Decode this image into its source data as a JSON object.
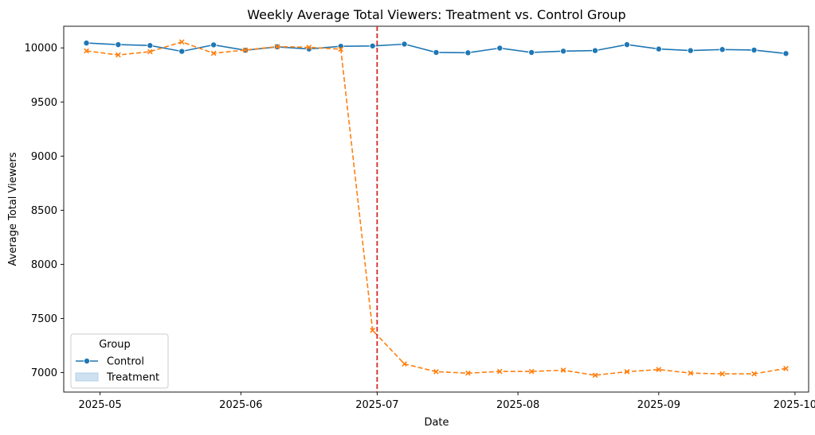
{
  "chart_data": {
    "type": "line",
    "title": "Weekly Average Total Viewers: Treatment vs. Control Group",
    "xlabel": "Date",
    "ylabel": "Average Total Viewers",
    "x": [
      "2025-04-28",
      "2025-05-05",
      "2025-05-12",
      "2025-05-19",
      "2025-05-26",
      "2025-06-02",
      "2025-06-09",
      "2025-06-16",
      "2025-06-23",
      "2025-06-30",
      "2025-07-07",
      "2025-07-14",
      "2025-07-21",
      "2025-07-28",
      "2025-08-04",
      "2025-08-11",
      "2025-08-18",
      "2025-08-25",
      "2025-09-01",
      "2025-09-08",
      "2025-09-15",
      "2025-09-22",
      "2025-09-29"
    ],
    "series": [
      {
        "name": "Control",
        "color": "#1f77b4",
        "marker": "circle",
        "style": "solid",
        "values": [
          10045,
          10030,
          10022,
          9968,
          10028,
          9978,
          10010,
          9990,
          10015,
          10018,
          10035,
          9958,
          9955,
          9998,
          9958,
          9970,
          9975,
          10030,
          9990,
          9975,
          9985,
          9980,
          9948
        ]
      },
      {
        "name": "Treatment",
        "color": "#ff7f0e",
        "marker": "x",
        "style": "dashed",
        "values": [
          9972,
          9935,
          9965,
          10055,
          9950,
          9980,
          10012,
          10005,
          9988,
          7390,
          7080,
          7008,
          6995,
          7010,
          7010,
          7022,
          6975,
          7008,
          7028,
          6995,
          6988,
          6988,
          7038
        ]
      }
    ],
    "vline": {
      "x": "2025-07-01",
      "color": "#d62728",
      "style": "dashed"
    },
    "xticks": [
      "2025-05-01",
      "2025-06-01",
      "2025-07-01",
      "2025-08-01",
      "2025-09-01",
      "2025-10-01"
    ],
    "xtick_labels": [
      "2025-05",
      "2025-06",
      "2025-07",
      "2025-08",
      "2025-09",
      "2025-10"
    ],
    "xlim": [
      "2025-04-23",
      "2025-10-04"
    ],
    "yticks": [
      7000,
      7500,
      8000,
      8500,
      9000,
      9500,
      10000
    ],
    "ylim": [
      6820,
      10200
    ],
    "grid": false,
    "legend": {
      "title": "Group",
      "position": "lower-left",
      "entries": [
        {
          "label": "Control",
          "kind": "line-marker",
          "color": "#1f77b4"
        },
        {
          "label": "Treatment",
          "kind": "patch",
          "color": "#a6c8e6"
        }
      ]
    }
  }
}
